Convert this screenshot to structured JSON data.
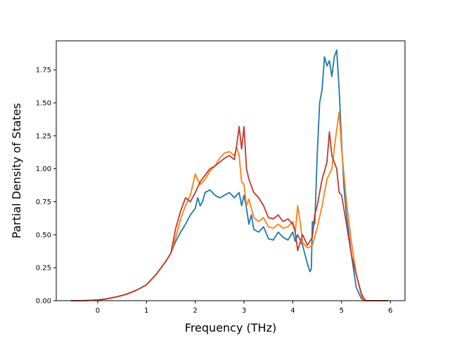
{
  "chart_data": {
    "type": "line",
    "title": "",
    "xlabel": "Frequency (THz)",
    "ylabel": "Partial Density of States",
    "xlim": [
      -0.85,
      6.3
    ],
    "ylim": [
      0.0,
      1.97
    ],
    "xticks": [
      0,
      1,
      2,
      3,
      4,
      5,
      6
    ],
    "xtick_labels": [
      "0",
      "1",
      "2",
      "3",
      "4",
      "5",
      "6"
    ],
    "yticks": [
      0.0,
      0.25,
      0.5,
      0.75,
      1.0,
      1.25,
      1.5,
      1.75
    ],
    "ytick_labels": [
      "0.00",
      "0.25",
      "0.50",
      "0.75",
      "1.00",
      "1.25",
      "1.50",
      "1.75"
    ],
    "grid": false,
    "legend": "none",
    "series": [
      {
        "color": "#1f77b4",
        "x": [
          -0.55,
          -0.3,
          0.0,
          0.2,
          0.4,
          0.6,
          0.8,
          1.0,
          1.2,
          1.4,
          1.5,
          1.6,
          1.7,
          1.8,
          1.9,
          2.0,
          2.05,
          2.1,
          2.15,
          2.2,
          2.3,
          2.4,
          2.5,
          2.6,
          2.7,
          2.8,
          2.9,
          2.95,
          3.0,
          3.05,
          3.1,
          3.15,
          3.2,
          3.3,
          3.4,
          3.5,
          3.6,
          3.7,
          3.8,
          3.9,
          4.0,
          4.05,
          4.1,
          4.2,
          4.3,
          4.35,
          4.38,
          4.4,
          4.45,
          4.5,
          4.55,
          4.6,
          4.65,
          4.7,
          4.75,
          4.8,
          4.85,
          4.9,
          4.95,
          5.0,
          5.05,
          5.1,
          5.2,
          5.3,
          5.4,
          5.45,
          5.5,
          5.6,
          5.8,
          5.95
        ],
        "y": [
          0.0,
          0.0,
          0.005,
          0.015,
          0.03,
          0.05,
          0.08,
          0.12,
          0.2,
          0.3,
          0.36,
          0.45,
          0.52,
          0.58,
          0.65,
          0.7,
          0.78,
          0.72,
          0.75,
          0.82,
          0.84,
          0.8,
          0.78,
          0.8,
          0.82,
          0.78,
          0.82,
          0.72,
          0.8,
          0.7,
          0.58,
          0.65,
          0.54,
          0.52,
          0.56,
          0.47,
          0.46,
          0.52,
          0.48,
          0.46,
          0.52,
          0.45,
          0.5,
          0.42,
          0.28,
          0.22,
          0.24,
          0.6,
          0.58,
          1.1,
          1.5,
          1.6,
          1.85,
          1.78,
          1.82,
          1.7,
          1.85,
          1.9,
          1.6,
          1.2,
          0.85,
          0.65,
          0.35,
          0.1,
          0.02,
          0.0,
          0.0,
          0.0,
          0.0,
          0.0
        ]
      },
      {
        "color": "#ff7f0e",
        "x": [
          -0.55,
          -0.3,
          0.0,
          0.2,
          0.4,
          0.6,
          0.8,
          1.0,
          1.2,
          1.4,
          1.5,
          1.6,
          1.7,
          1.8,
          1.9,
          2.0,
          2.1,
          2.2,
          2.3,
          2.4,
          2.5,
          2.6,
          2.7,
          2.8,
          2.85,
          2.9,
          2.95,
          3.0,
          3.05,
          3.1,
          3.2,
          3.3,
          3.4,
          3.5,
          3.6,
          3.7,
          3.8,
          3.9,
          4.0,
          4.05,
          4.1,
          4.15,
          4.2,
          4.3,
          4.4,
          4.5,
          4.6,
          4.7,
          4.8,
          4.9,
          4.95,
          5.0,
          5.1,
          5.2,
          5.3,
          5.4,
          5.45,
          5.5,
          5.6,
          5.8,
          5.95
        ],
        "y": [
          0.0,
          0.0,
          0.005,
          0.015,
          0.03,
          0.05,
          0.08,
          0.12,
          0.2,
          0.3,
          0.36,
          0.48,
          0.62,
          0.72,
          0.8,
          0.96,
          0.88,
          0.92,
          0.98,
          1.02,
          1.08,
          1.12,
          1.13,
          1.1,
          1.16,
          1.1,
          0.9,
          0.88,
          0.72,
          0.77,
          0.63,
          0.6,
          0.63,
          0.56,
          0.55,
          0.58,
          0.55,
          0.56,
          0.6,
          0.52,
          0.72,
          0.6,
          0.44,
          0.4,
          0.42,
          0.55,
          0.72,
          0.92,
          1.0,
          1.3,
          1.43,
          1.15,
          0.75,
          0.45,
          0.2,
          0.05,
          0.0,
          0.0,
          0.0,
          0.0,
          0.0
        ]
      },
      {
        "color": "#c0392b",
        "x": [
          -0.55,
          -0.3,
          0.0,
          0.2,
          0.4,
          0.6,
          0.8,
          1.0,
          1.2,
          1.4,
          1.5,
          1.6,
          1.7,
          1.8,
          1.9,
          2.0,
          2.1,
          2.2,
          2.3,
          2.4,
          2.5,
          2.6,
          2.7,
          2.8,
          2.85,
          2.9,
          2.95,
          3.0,
          3.05,
          3.1,
          3.2,
          3.3,
          3.4,
          3.5,
          3.6,
          3.7,
          3.8,
          3.9,
          4.0,
          4.05,
          4.1,
          4.2,
          4.3,
          4.4,
          4.45,
          4.5,
          4.6,
          4.7,
          4.75,
          4.8,
          4.9,
          4.95,
          5.0,
          5.1,
          5.2,
          5.3,
          5.4,
          5.45,
          5.5,
          5.6,
          5.8,
          5.95
        ],
        "y": [
          0.0,
          0.0,
          0.005,
          0.015,
          0.03,
          0.05,
          0.08,
          0.12,
          0.2,
          0.3,
          0.36,
          0.55,
          0.68,
          0.78,
          0.75,
          0.82,
          0.9,
          0.95,
          1.0,
          1.02,
          1.05,
          1.08,
          1.1,
          1.07,
          1.18,
          1.32,
          1.15,
          1.32,
          1.0,
          0.92,
          0.82,
          0.78,
          0.72,
          0.63,
          0.62,
          0.65,
          0.6,
          0.62,
          0.58,
          0.52,
          0.38,
          0.5,
          0.42,
          0.48,
          0.65,
          0.72,
          0.92,
          1.05,
          1.28,
          1.1,
          1.0,
          0.82,
          0.8,
          0.58,
          0.35,
          0.2,
          0.06,
          0.02,
          0.0,
          0.0,
          0.0,
          0.0
        ]
      }
    ]
  }
}
